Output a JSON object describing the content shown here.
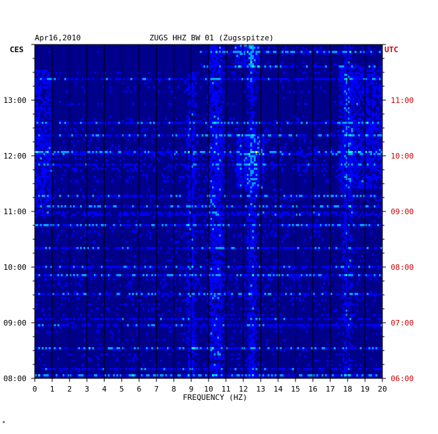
{
  "header": {
    "date": "Apr16,2010",
    "station": "ZUGS HHZ BW 01 (Zugsspitze)",
    "left_zone": "CES",
    "right_zone": "UTC"
  },
  "footer": {
    "mark": "*"
  },
  "chart_data": {
    "type": "heatmap",
    "title": "ZUGS HHZ BW 01 (Zugsspitze)",
    "date": "Apr16,2010",
    "xlabel": "FREQUENCY (HZ)",
    "xlim": [
      0,
      20
    ],
    "x_ticks": [
      "0",
      "1",
      "2",
      "3",
      "4",
      "5",
      "6",
      "7",
      "8",
      "9",
      "10",
      "11",
      "12",
      "13",
      "14",
      "15",
      "16",
      "17",
      "18",
      "19",
      "20"
    ],
    "y_left_label": "CES",
    "y_right_label": "UTC",
    "ylim_local_hours": [
      8.0,
      14.0
    ],
    "y_left_ticks": [
      "08:00",
      "09:00",
      "10:00",
      "11:00",
      "12:00",
      "13:00"
    ],
    "y_right_ticks": [
      "06:00",
      "07:00",
      "08:00",
      "09:00",
      "10:00",
      "11:00"
    ],
    "colormap": [
      "#000080",
      "#0000ff",
      "#00a0ff",
      "#00ffff",
      "#ffff00",
      "#ff0000"
    ],
    "dominant_bands_hz": [
      9.0,
      10.2,
      10.6,
      12.5,
      18.0
    ],
    "grid": true
  }
}
